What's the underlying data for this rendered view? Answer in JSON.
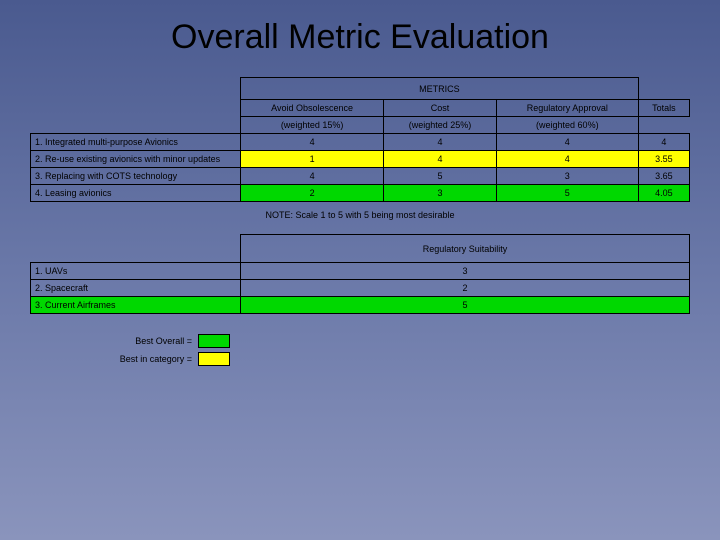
{
  "title": "Overall Metric Evaluation",
  "metrics_table": {
    "header_label": "METRICS",
    "columns": [
      {
        "name": "Avoid Obsolescence",
        "weight": "(weighted 15%)"
      },
      {
        "name": "Cost",
        "weight": "(weighted 25%)"
      },
      {
        "name": "Regulatory Approval",
        "weight": "(weighted 60%)"
      }
    ],
    "totals_label": "Totals",
    "rows": [
      {
        "label": "1.  Integrated multi-purpose Avionics",
        "vals": [
          "4",
          "4",
          "4"
        ],
        "total": "4",
        "highlight": "none"
      },
      {
        "label": "2.  Re-use existing avionics with minor updates",
        "vals": [
          "1",
          "4",
          "4"
        ],
        "total": "3.55",
        "highlight": "yellow"
      },
      {
        "label": "3.  Replacing with COTS technology",
        "vals": [
          "4",
          "5",
          "3"
        ],
        "total": "3.65",
        "highlight": "none"
      },
      {
        "label": "4.  Leasing avionics",
        "vals": [
          "2",
          "3",
          "5"
        ],
        "total": "4.05",
        "highlight": "green"
      }
    ],
    "note": "NOTE:  Scale 1 to 5 with 5 being most desirable"
  },
  "suitability_table": {
    "header": "Regulatory Suitability",
    "rows": [
      {
        "label": "1.  UAVs",
        "val": "3",
        "highlight": "none"
      },
      {
        "label": "2.  Spacecraft",
        "val": "2",
        "highlight": "none"
      },
      {
        "label": "3.  Current Airframes",
        "val": "5",
        "highlight": "green"
      }
    ]
  },
  "legend": {
    "best_overall": "Best Overall =",
    "best_category": "Best in category ="
  },
  "colors": {
    "green": "#00d800",
    "yellow": "#ffff00",
    "border": "#000000"
  }
}
